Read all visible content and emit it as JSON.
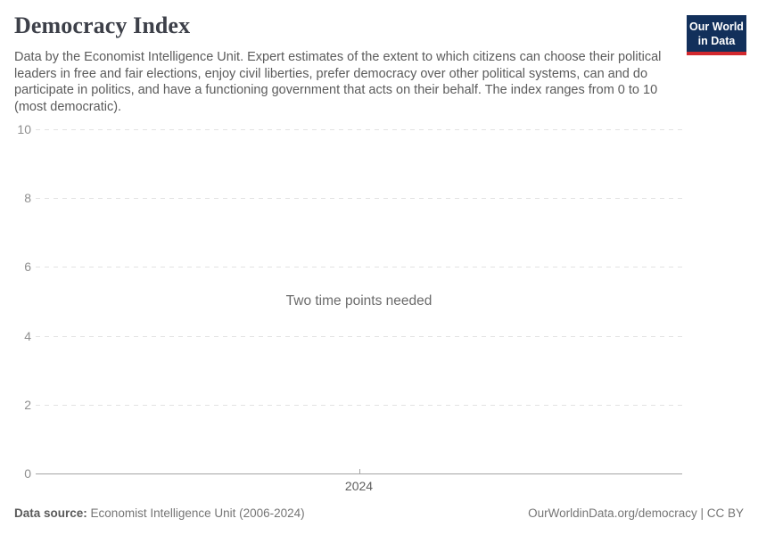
{
  "header": {
    "title": "Democracy Index",
    "subtitle": "Data by the Economist Intelligence Unit. Expert estimates of the extent to which citizens can choose their political leaders in free and fair elections, enjoy civil liberties, prefer democracy over other political systems, can and do participate in politics, and have a functioning government that acts on their behalf. The index ranges from 0 to 10 (most democratic).",
    "logo_line1": "Our World",
    "logo_line2": "in Data"
  },
  "chart_data": {
    "type": "line",
    "title": "Democracy Index",
    "empty_message": "Two time points needed",
    "series": [],
    "categories": [],
    "x_ticks": [
      "2024"
    ],
    "y_ticks": [
      0,
      2,
      4,
      6,
      8,
      10
    ],
    "ylim": [
      0,
      10
    ],
    "xlabel": "",
    "ylabel": "",
    "grid": "horizontal-dashed",
    "legend": "none"
  },
  "footer": {
    "source_label": "Data source:",
    "source_value": "Economist Intelligence Unit (2006-2024)",
    "credit": "OurWorldinData.org/democracy | CC BY"
  },
  "colors": {
    "logo_background": "#12305b",
    "logo_accent_red": "#d2282e",
    "title_text": "#3d4049",
    "subtitle_text": "#5b5b5b",
    "axis_tick_label": "#8f8f8f",
    "gridline": "#e3e3e3",
    "axis_line": "#a4a4a4",
    "empty_message_text": "#6b6b6b",
    "footer_text": "#757575"
  }
}
